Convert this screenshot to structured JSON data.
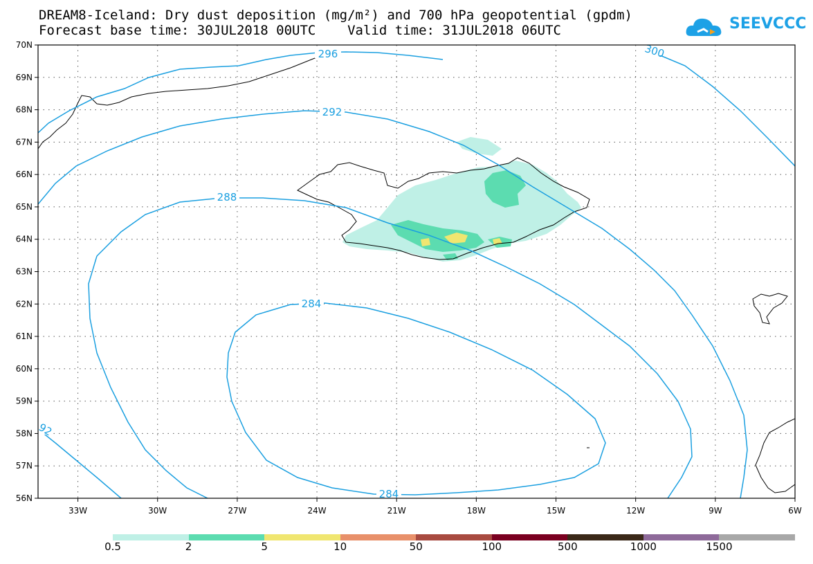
{
  "header": {
    "title": "DREAM8-Iceland: Dry dust deposition (mg/m²) and 700 hPa geopotential (gpdm)",
    "subtitle": "Forecast base time: 30JUL2018 00UTC    Valid time: 31JUL2018 06UTC"
  },
  "logo": {
    "text": "SEEVCCC",
    "color": "#1da1e6"
  },
  "map": {
    "lon_range": [
      -34.5,
      -6
    ],
    "lat_range": [
      56,
      70
    ],
    "lon_ticks": [
      "33W",
      "30W",
      "27W",
      "24W",
      "21W",
      "18W",
      "15W",
      "12W",
      "9W",
      "6W"
    ],
    "lat_ticks": [
      "70N",
      "69N",
      "68N",
      "67N",
      "66N",
      "65N",
      "64N",
      "63N",
      "62N",
      "61N",
      "60N",
      "59N",
      "58N",
      "57N",
      "56N"
    ],
    "grid": "dotted",
    "contour_color": "#1a9fe0",
    "contour_labels": [
      "296",
      "300",
      "292",
      "288",
      "284",
      "284",
      "92"
    ]
  },
  "colorbar": {
    "colors": [
      "#bff0e6",
      "#5cdcb0",
      "#f0e670",
      "#e8906a",
      "#a84a40",
      "#7a0020",
      "#3a2818",
      "#8e6a9a",
      "#a8a8a8"
    ],
    "labels": [
      "0.5",
      "2",
      "5",
      "10",
      "50",
      "100",
      "500",
      "1000",
      "1500"
    ]
  }
}
